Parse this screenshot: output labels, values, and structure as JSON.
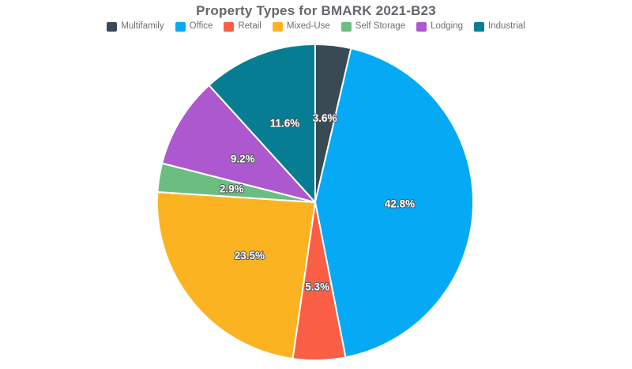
{
  "page": {
    "background_color": "#ffffff"
  },
  "chart_data": {
    "type": "pie",
    "title": "Property Types for BMARK 2021-B23",
    "categories": [
      "Multifamily",
      "Office",
      "Retail",
      "Mixed-Use",
      "Self Storage",
      "Lodging",
      "Industrial"
    ],
    "values": [
      3.6,
      42.8,
      5.3,
      23.5,
      2.9,
      9.2,
      11.6
    ],
    "value_labels": [
      "3.6%",
      "42.8%",
      "5.3%",
      "23.5%",
      "2.9%",
      "9.2%",
      "11.6%"
    ],
    "colors": [
      "#394a55",
      "#06a9f4",
      "#fa5e45",
      "#fcb322",
      "#6cbd82",
      "#ad58ce",
      "#067d92"
    ],
    "legend_position": "top",
    "start_angle_deg": 0,
    "direction": "clockwise",
    "slice_border_color": "#ffffff",
    "label_text_color": "#ffffff",
    "label_outline_color": "#51565b",
    "title_color": "#63676b",
    "legend_text_color": "#6b6f73"
  }
}
